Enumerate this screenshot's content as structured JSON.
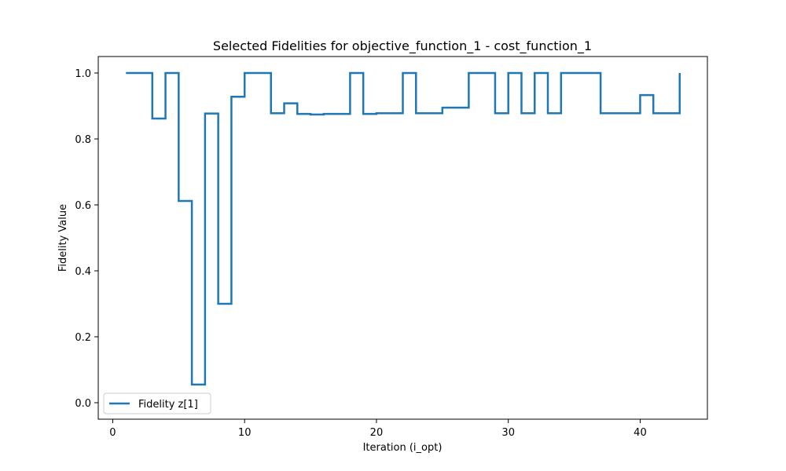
{
  "chart_data": {
    "type": "line",
    "step": "post",
    "title": "Selected Fidelities for objective_function_1 - cost_function_1",
    "xlabel": "Iteration (i_opt)",
    "ylabel": "Fidelity Value",
    "xlim": [
      -1.1,
      45.1
    ],
    "ylim": [
      -0.05,
      1.05
    ],
    "xticks": [
      0,
      10,
      20,
      30,
      40
    ],
    "yticks": [
      0.0,
      0.2,
      0.4,
      0.6,
      0.8,
      1.0
    ],
    "xtick_labels": [
      "0",
      "10",
      "20",
      "30",
      "40"
    ],
    "ytick_labels": [
      "0.0",
      "0.2",
      "0.4",
      "0.6",
      "0.8",
      "1.0"
    ],
    "grid": false,
    "legend_position": "lower-left",
    "series": [
      {
        "name": "Fidelity z[1]",
        "color": "#1f77b4",
        "x": [
          1,
          2,
          3,
          4,
          5,
          6,
          7,
          8,
          9,
          10,
          11,
          12,
          13,
          14,
          15,
          16,
          17,
          18,
          19,
          20,
          21,
          22,
          23,
          24,
          25,
          26,
          27,
          28,
          29,
          30,
          31,
          32,
          33,
          34,
          35,
          36,
          37,
          38,
          39,
          40,
          41,
          42,
          43
        ],
        "y": [
          1.0,
          1.0,
          0.862,
          1.0,
          0.612,
          0.055,
          0.877,
          0.3,
          0.928,
          1.0,
          1.0,
          0.878,
          0.908,
          0.876,
          0.874,
          0.876,
          0.876,
          1.0,
          0.876,
          0.878,
          0.878,
          1.0,
          0.878,
          0.878,
          0.895,
          0.895,
          1.0,
          1.0,
          0.878,
          1.0,
          0.878,
          1.0,
          0.878,
          1.0,
          1.0,
          1.0,
          0.878,
          0.878,
          0.878,
          0.933,
          0.878,
          0.878,
          1.0
        ]
      }
    ]
  }
}
